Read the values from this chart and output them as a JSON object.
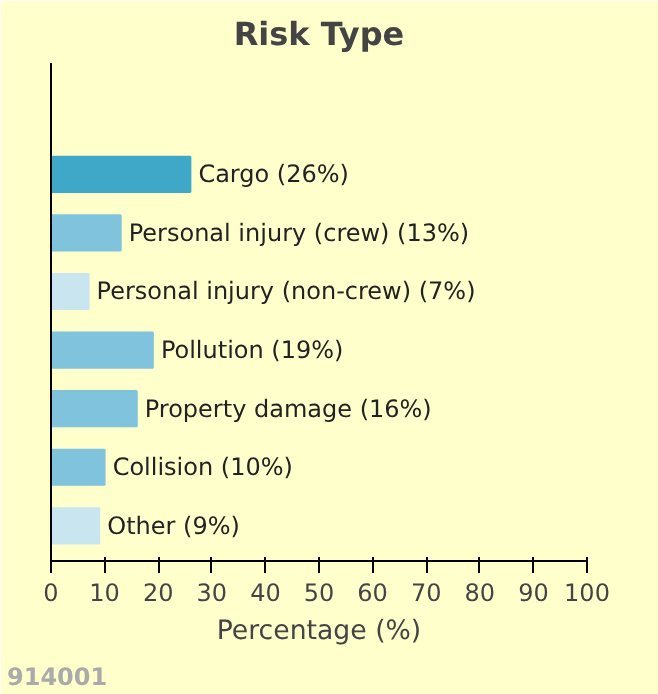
{
  "chart_data": {
    "type": "bar",
    "orientation": "horizontal",
    "title": "Risk Type",
    "xlabel": "Percentage (%)",
    "categories": [
      "Cargo",
      "Personal injury (crew)",
      "Personal injury (non-crew)",
      "Pollution",
      "Property damage",
      "Collision",
      "Other"
    ],
    "values": [
      26,
      13,
      7,
      19,
      16,
      10,
      9
    ],
    "value_labels": [
      "(26%)",
      "(13%)",
      "(7%)",
      "(19%)",
      "(16%)",
      "(10%)",
      "(9%)"
    ],
    "colors": [
      "#3fa8c9",
      "#80c3dd",
      "#c8e5f0",
      "#80c3dd",
      "#80c3dd",
      "#80c3dd",
      "#c8e5f0"
    ],
    "xlim": [
      0,
      100
    ],
    "xticks": [
      0,
      10,
      20,
      30,
      40,
      50,
      60,
      70,
      80,
      90,
      100
    ],
    "tick_labels": "x",
    "grid": false,
    "annotations": [
      "914001"
    ]
  }
}
